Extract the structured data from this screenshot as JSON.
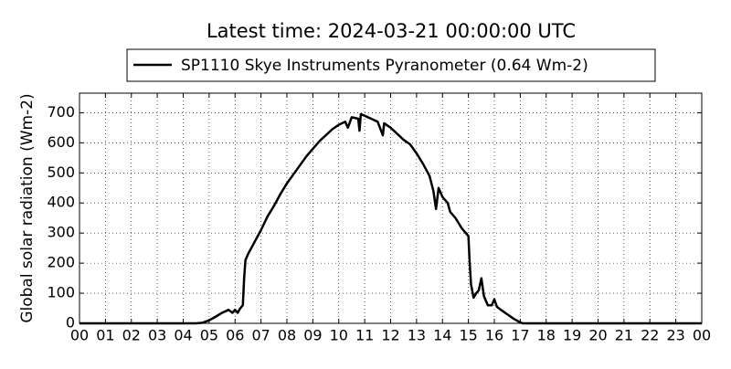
{
  "chart_data": {
    "type": "line",
    "title": "Latest time: 2024-03-21 00:00:00 UTC",
    "y_label": "Global solar radiation (Wm-2)",
    "legend": "top",
    "grid": true,
    "xlim": [
      0,
      24
    ],
    "ylim": [
      0,
      765
    ],
    "xticks": [
      {
        "value": 0,
        "label": "00"
      },
      {
        "value": 1,
        "label": "01"
      },
      {
        "value": 2,
        "label": "02"
      },
      {
        "value": 3,
        "label": "03"
      },
      {
        "value": 4,
        "label": "04"
      },
      {
        "value": 5,
        "label": "05"
      },
      {
        "value": 6,
        "label": "06"
      },
      {
        "value": 7,
        "label": "07"
      },
      {
        "value": 8,
        "label": "08"
      },
      {
        "value": 9,
        "label": "09"
      },
      {
        "value": 10,
        "label": "10"
      },
      {
        "value": 11,
        "label": "11"
      },
      {
        "value": 12,
        "label": "12"
      },
      {
        "value": 13,
        "label": "13"
      },
      {
        "value": 14,
        "label": "14"
      },
      {
        "value": 15,
        "label": "15"
      },
      {
        "value": 16,
        "label": "16"
      },
      {
        "value": 17,
        "label": "17"
      },
      {
        "value": 18,
        "label": "18"
      },
      {
        "value": 19,
        "label": "19"
      },
      {
        "value": 20,
        "label": "20"
      },
      {
        "value": 21,
        "label": "21"
      },
      {
        "value": 22,
        "label": "22"
      },
      {
        "value": 23,
        "label": "23"
      },
      {
        "value": 24,
        "label": "00"
      }
    ],
    "yticks": [
      0,
      100,
      200,
      300,
      400,
      500,
      600,
      700
    ],
    "x": [
      0,
      4.5,
      4.75,
      5,
      5.25,
      5.5,
      5.75,
      5.9,
      6,
      6.1,
      6.2,
      6.3,
      6.35,
      6.4,
      6.5,
      6.75,
      7,
      7.25,
      7.5,
      7.75,
      8,
      8.25,
      8.5,
      8.75,
      9,
      9.25,
      9.5,
      9.75,
      10,
      10.25,
      10.35,
      10.5,
      10.75,
      10.8,
      10.85,
      11,
      11.25,
      11.5,
      11.7,
      11.75,
      12,
      12.25,
      12.5,
      12.75,
      13,
      13.25,
      13.5,
      13.65,
      13.75,
      13.85,
      14,
      14.2,
      14.3,
      14.5,
      14.75,
      15,
      15.05,
      15.1,
      15.2,
      15.3,
      15.4,
      15.5,
      15.6,
      15.75,
      15.9,
      16,
      16.1,
      16.25,
      16.5,
      16.75,
      17,
      17.1,
      24
    ],
    "series": [
      {
        "name": "SP1110 Skye Instruments Pyranometer (0.64 Wm-2)",
        "color": "#000000",
        "values": [
          0,
          0,
          2,
          10,
          22,
          35,
          45,
          35,
          45,
          35,
          50,
          60,
          150,
          210,
          230,
          270,
          310,
          355,
          390,
          430,
          465,
          495,
          525,
          555,
          580,
          605,
          625,
          645,
          660,
          670,
          650,
          685,
          680,
          640,
          695,
          690,
          680,
          670,
          625,
          665,
          650,
          630,
          610,
          595,
          565,
          530,
          490,
          440,
          380,
          450,
          420,
          400,
          370,
          350,
          315,
          290,
          200,
          130,
          85,
          100,
          110,
          150,
          90,
          60,
          60,
          80,
          55,
          45,
          30,
          15,
          3,
          0,
          0
        ]
      }
    ]
  }
}
